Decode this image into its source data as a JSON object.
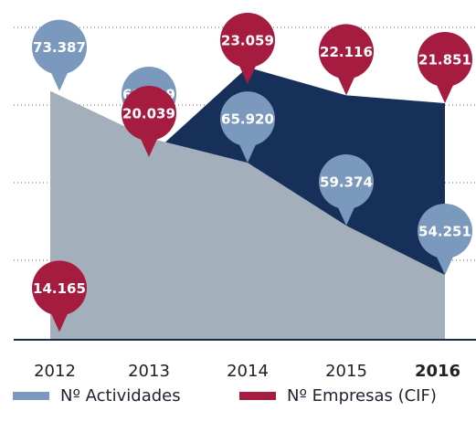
{
  "chart_data": {
    "type": "area",
    "categories": [
      "2012",
      "2013",
      "2014",
      "2015",
      "2016"
    ],
    "highlight_index": 4,
    "series": [
      {
        "name": "Nº Actividades",
        "color": "#a3afba",
        "label_color": "#7b98bd",
        "values": [
          73387,
          68499,
          65920,
          59374,
          54251
        ],
        "value_labels": [
          "73.387",
          "68.499",
          "65.920",
          "59.374",
          "54.251"
        ]
      },
      {
        "name": "Nº Empresas (CIF)",
        "color": "#16305a",
        "label_color": "#a51c40",
        "axis": "y2",
        "values": [
          14165,
          20039,
          23059,
          22116,
          21851
        ],
        "value_labels": [
          "14.165",
          "20.039",
          "23.059",
          "22.116",
          "21.851"
        ]
      }
    ],
    "ylim": [
      47500,
      80000
    ],
    "y2lim": [
      13900,
      24400
    ]
  }
}
